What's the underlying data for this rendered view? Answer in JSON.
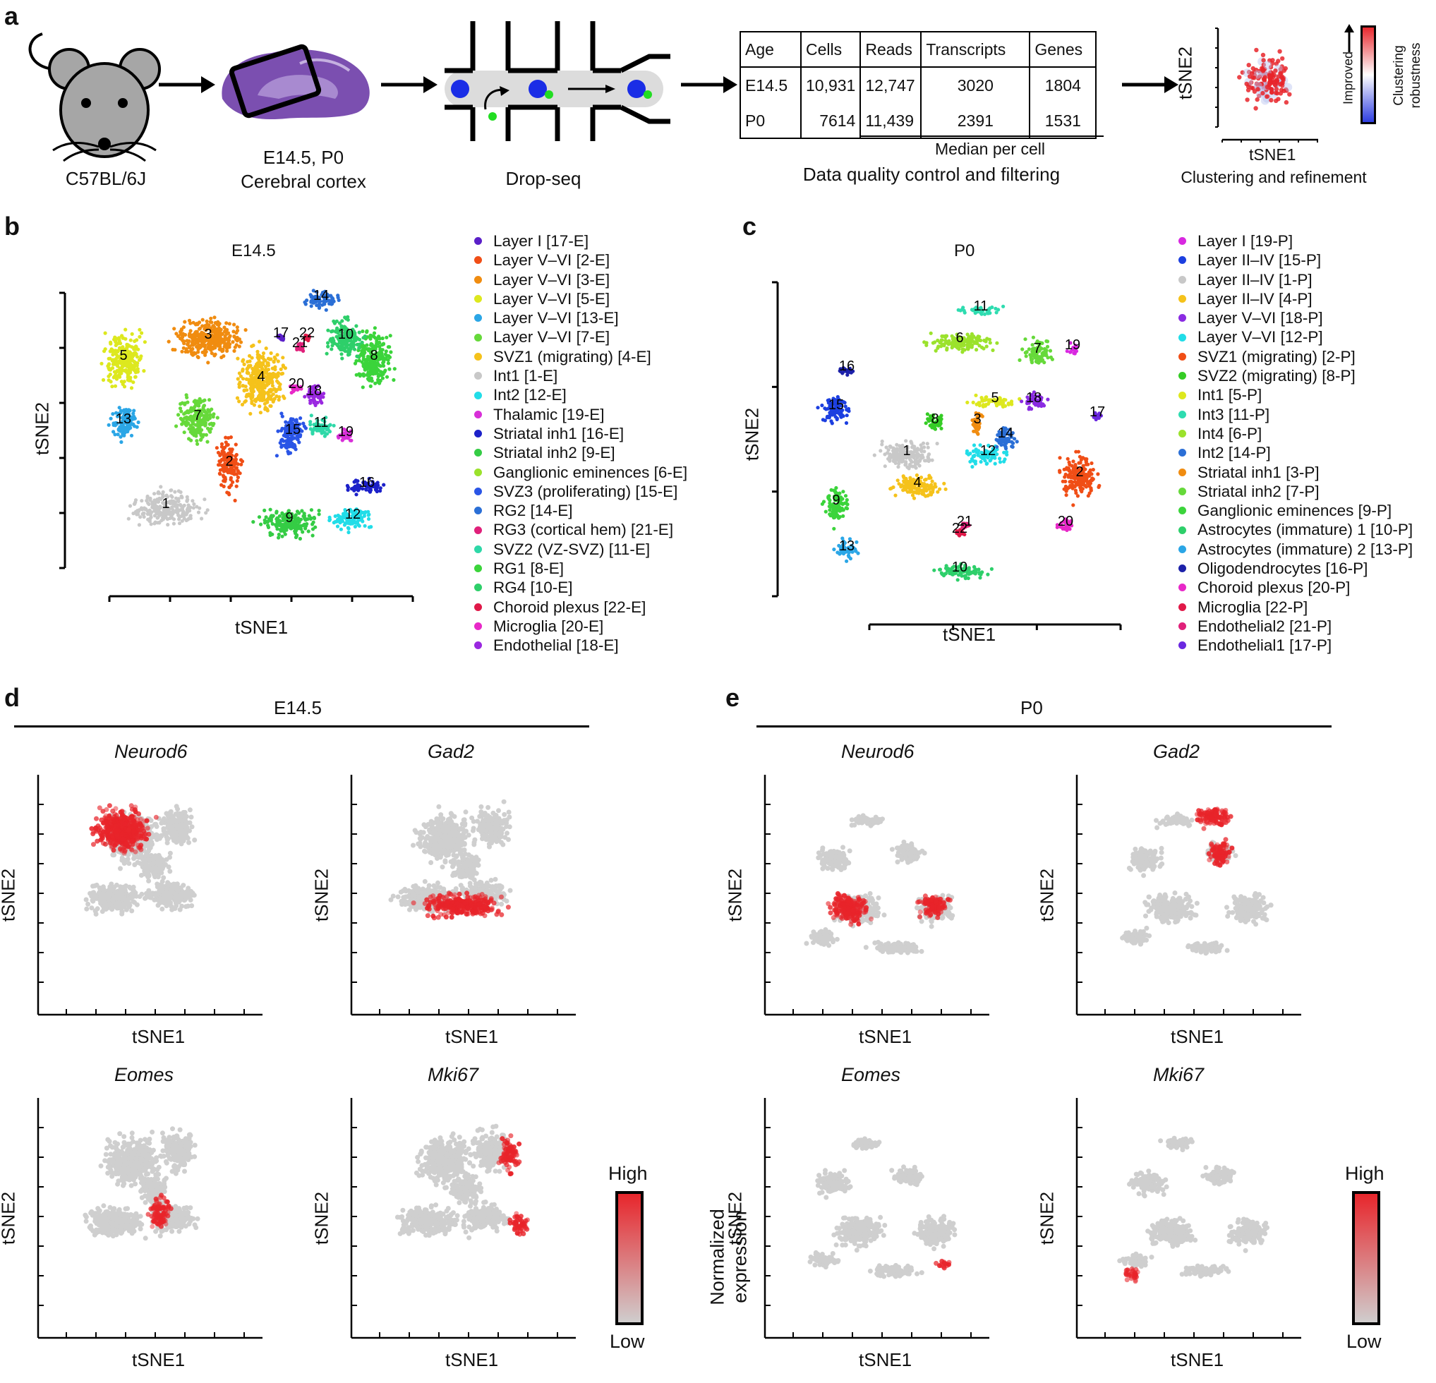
{
  "panels": {
    "a": {
      "label": "a",
      "mouse_caption": "C57BL/6J",
      "brain_caption_1": "E14.5, P0",
      "brain_caption_2": "Cerebral cortex",
      "dropseq_caption": "Drop-seq",
      "table": {
        "headers": [
          "Age",
          "Cells",
          "Reads",
          "Transcripts",
          "Genes"
        ],
        "rows": [
          [
            "E14.5",
            "10,931",
            "12,747",
            "3020",
            "1804"
          ],
          [
            "P0",
            "7614",
            "11,439",
            "2391",
            "1531"
          ]
        ],
        "median_note": "Median per cell"
      },
      "qc_caption": "Data quality control and filtering",
      "mini_plot": {
        "xlabel": "tSNE1",
        "ylabel": "tSNE2",
        "arrow_label": "Improved",
        "colorbar_label_1": "Clustering",
        "colorbar_label_2": "robustness"
      },
      "cluster_caption": "Clustering and refinement"
    },
    "b": {
      "label": "b",
      "title": "E14.5",
      "xlabel": "tSNE1",
      "ylabel": "tSNE2",
      "legend": [
        {
          "label": "Layer I [17-E]",
          "color": "#5a1fc8"
        },
        {
          "label": "Layer V–VI [2-E]",
          "color": "#f04e16"
        },
        {
          "label": "Layer V–VI [3-E]",
          "color": "#f08c10"
        },
        {
          "label": "Layer V–VI [5-E]",
          "color": "#dde81e"
        },
        {
          "label": "Layer V–VI [13-E]",
          "color": "#2ba6e6"
        },
        {
          "label": "Layer V–VI [7-E]",
          "color": "#66d93a"
        },
        {
          "label": "SVZ1 (migrating) [4-E]",
          "color": "#f5c21b"
        },
        {
          "label": "Int1 [1-E]",
          "color": "#c8c8c8"
        },
        {
          "label": "Int2 [12-E]",
          "color": "#21dde8"
        },
        {
          "label": "Thalamic [19-E]",
          "color": "#d82fd8"
        },
        {
          "label": "Striatal inh1 [16-E]",
          "color": "#1c21c9"
        },
        {
          "label": "Striatal inh2 [9-E]",
          "color": "#35cc45"
        },
        {
          "label": "Ganglionic eminences [6-E]",
          "color": "#9be22c"
        },
        {
          "label": "SVZ3 (proliferating) [15-E]",
          "color": "#2a55e6"
        },
        {
          "label": "RG2 [14-E]",
          "color": "#2b6fd6"
        },
        {
          "label": "RG3 (cortical hem) [21-E]",
          "color": "#e0207a"
        },
        {
          "label": "SVZ2 (VZ-SVZ) [11-E]",
          "color": "#2ed8a8"
        },
        {
          "label": "RG1 [8-E]",
          "color": "#3bd43b"
        },
        {
          "label": "RG4 [10-E]",
          "color": "#2ecf6a"
        },
        {
          "label": "Choroid plexus [22-E]",
          "color": "#e01848"
        },
        {
          "label": "Microglia [20-E]",
          "color": "#e828c8"
        },
        {
          "label": "Endothelial [18-E]",
          "color": "#9a28e0"
        }
      ],
      "clusters": [
        {
          "id": "1",
          "color": "#c8c8c8"
        },
        {
          "id": "2",
          "color": "#f04e16"
        },
        {
          "id": "3",
          "color": "#f08c10"
        },
        {
          "id": "4",
          "color": "#f5c21b"
        },
        {
          "id": "5",
          "color": "#dde81e"
        },
        {
          "id": "7",
          "color": "#66d93a"
        },
        {
          "id": "8",
          "color": "#3bd43b"
        },
        {
          "id": "9",
          "color": "#35cc45"
        },
        {
          "id": "10",
          "color": "#2ecf6a"
        },
        {
          "id": "11",
          "color": "#2ed8a8"
        },
        {
          "id": "12",
          "color": "#21dde8"
        },
        {
          "id": "13",
          "color": "#2ba6e6"
        },
        {
          "id": "14",
          "color": "#2b6fd6"
        },
        {
          "id": "15",
          "color": "#2a55e6"
        },
        {
          "id": "16",
          "color": "#1c21c9"
        },
        {
          "id": "17",
          "color": "#5a1fc8"
        },
        {
          "id": "18",
          "color": "#9a28e0"
        },
        {
          "id": "19",
          "color": "#d82fd8"
        },
        {
          "id": "20",
          "color": "#e828c8"
        },
        {
          "id": "21",
          "color": "#e0207a"
        },
        {
          "id": "22",
          "color": "#e01848"
        }
      ]
    },
    "c": {
      "label": "c",
      "title": "P0",
      "xlabel": "tSNE1",
      "ylabel": "tSNE2",
      "legend": [
        {
          "label": "Layer I [19-P]",
          "color": "#d828e0"
        },
        {
          "label": "Layer II–IV [15-P]",
          "color": "#1c3fe0"
        },
        {
          "label": "Layer II–IV [1-P]",
          "color": "#c8c8c8"
        },
        {
          "label": "Layer II–IV [4-P]",
          "color": "#f5c21b"
        },
        {
          "label": "Layer V–VI [18-P]",
          "color": "#8a2be2"
        },
        {
          "label": "Layer V–VI [12-P]",
          "color": "#21dde8"
        },
        {
          "label": "SVZ1 (migrating) [2-P]",
          "color": "#f04e16"
        },
        {
          "label": "SVZ2 (migrating) [8-P]",
          "color": "#35cc25"
        },
        {
          "label": "Int1 [5-P]",
          "color": "#dde81e"
        },
        {
          "label": "Int3 [11-P]",
          "color": "#2edcb0"
        },
        {
          "label": "Int4 [6-P]",
          "color": "#9be22c"
        },
        {
          "label": "Int2 [14-P]",
          "color": "#2b6fd6"
        },
        {
          "label": "Striatal inh1 [3-P]",
          "color": "#f08c10"
        },
        {
          "label": "Striatal inh2 [7-P]",
          "color": "#66d93a"
        },
        {
          "label": "Ganglionic eminences [9-P]",
          "color": "#3bd43b"
        },
        {
          "label": "Astrocytes (immature) 1 [10-P]",
          "color": "#2ecf6a"
        },
        {
          "label": "Astrocytes (immature) 2 [13-P]",
          "color": "#2ba6e6"
        },
        {
          "label": "Oligodendrocytes [16-P]",
          "color": "#1c21a9"
        },
        {
          "label": "Choroid plexus [20-P]",
          "color": "#e828c8"
        },
        {
          "label": "Microglia [22-P]",
          "color": "#e01848"
        },
        {
          "label": "Endothelial2 [21-P]",
          "color": "#e0207a"
        },
        {
          "label": "Endothelial1 [17-P]",
          "color": "#6a28e0"
        }
      ],
      "clusters": [
        {
          "id": "1",
          "color": "#c8c8c8"
        },
        {
          "id": "2",
          "color": "#f04e16"
        },
        {
          "id": "3",
          "color": "#f08c10"
        },
        {
          "id": "4",
          "color": "#f5c21b"
        },
        {
          "id": "5",
          "color": "#dde81e"
        },
        {
          "id": "6",
          "color": "#9be22c"
        },
        {
          "id": "7",
          "color": "#66d93a"
        },
        {
          "id": "8",
          "color": "#35cc25"
        },
        {
          "id": "9",
          "color": "#3bd43b"
        },
        {
          "id": "10",
          "color": "#2ecf6a"
        },
        {
          "id": "11",
          "color": "#2edcb0"
        },
        {
          "id": "12",
          "color": "#21dde8"
        },
        {
          "id": "13",
          "color": "#2ba6e6"
        },
        {
          "id": "14",
          "color": "#2b6fd6"
        },
        {
          "id": "15",
          "color": "#1c3fe0"
        },
        {
          "id": "16",
          "color": "#1c21a9"
        },
        {
          "id": "17",
          "color": "#6a28e0"
        },
        {
          "id": "18",
          "color": "#8a2be2"
        },
        {
          "id": "19",
          "color": "#d828e0"
        },
        {
          "id": "20",
          "color": "#e828c8"
        },
        {
          "id": "21",
          "color": "#e0207a"
        },
        {
          "id": "22",
          "color": "#e01848"
        }
      ]
    },
    "d": {
      "label": "d",
      "title": "E14.5",
      "plots": [
        {
          "gene": "Neurod6",
          "xlabel": "tSNE1",
          "ylabel": "tSNE2"
        },
        {
          "gene": "Gad2",
          "xlabel": "tSNE1",
          "ylabel": "tSNE2"
        },
        {
          "gene": "Eomes",
          "xlabel": "tSNE1",
          "ylabel": "tSNE2"
        },
        {
          "gene": "Mki67",
          "xlabel": "tSNE1",
          "ylabel": "tSNE2"
        }
      ],
      "colorbar": {
        "high": "High",
        "low": "Low",
        "label_1": "Normalized",
        "label_2": "expression"
      }
    },
    "e": {
      "label": "e",
      "title": "P0",
      "plots": [
        {
          "gene": "Neurod6",
          "xlabel": "tSNE1",
          "ylabel": "tSNE2"
        },
        {
          "gene": "Gad2",
          "xlabel": "tSNE1",
          "ylabel": "tSNE2"
        },
        {
          "gene": "Eomes",
          "xlabel": "tSNE1",
          "ylabel": "tSNE2"
        },
        {
          "gene": "Mki67",
          "xlabel": "tSNE1",
          "ylabel": "tSNE2"
        }
      ],
      "colorbar": {
        "high": "High",
        "low": "Low",
        "label_1": "Normalized",
        "label_2": "expression"
      }
    }
  },
  "colors": {
    "low_expression": "#cfcfcf",
    "high_expression": "#e8242a",
    "robust_high": "#e8242a",
    "robust_low": "#2a3ae0"
  }
}
